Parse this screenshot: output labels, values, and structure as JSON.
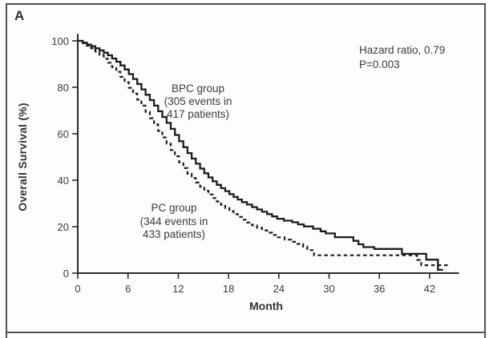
{
  "panel_label": "A",
  "annotations": {
    "hazard_line1": "Hazard ratio, 0.79",
    "hazard_line2": "P=0.003",
    "bpc_line1": "BPC group",
    "bpc_line2": "(305 events in",
    "bpc_line3": "417 patients)",
    "pc_line1": "PC group",
    "pc_line2": "(344 events in",
    "pc_line3": "433 patients)"
  },
  "chart_data": {
    "type": "line",
    "subtype": "kaplan-meier-step",
    "title": "",
    "xlabel": "Month",
    "ylabel": "Overall Survival (%)",
    "xlim": [
      0,
      44.5
    ],
    "ylim": [
      0,
      100
    ],
    "x_ticks": [
      0,
      6,
      12,
      18,
      24,
      30,
      36,
      42
    ],
    "y_ticks": [
      0,
      20,
      40,
      60,
      80,
      100
    ],
    "grid": false,
    "legend_position": "inline-annotations",
    "stats": {
      "hazard_ratio": 0.79,
      "p_value": 0.003
    },
    "series": [
      {
        "name": "BPC group",
        "style": "solid",
        "events": 305,
        "patients": 417,
        "points": [
          [
            0,
            100
          ],
          [
            0.6,
            99.2
          ],
          [
            1.1,
            98.4
          ],
          [
            1.6,
            97.7
          ],
          [
            2.1,
            96.8
          ],
          [
            2.6,
            95.9
          ],
          [
            3.1,
            94.9
          ],
          [
            3.6,
            93.8
          ],
          [
            4.1,
            92.4
          ],
          [
            4.6,
            91.0
          ],
          [
            5.1,
            89.4
          ],
          [
            5.6,
            87.7
          ],
          [
            6.1,
            85.7
          ],
          [
            6.6,
            83.6
          ],
          [
            7.1,
            81.4
          ],
          [
            7.6,
            79.1
          ],
          [
            8.1,
            76.8
          ],
          [
            8.6,
            74.5
          ],
          [
            9.1,
            72.1
          ],
          [
            9.6,
            69.7
          ],
          [
            10.1,
            67.2
          ],
          [
            10.6,
            64.7
          ],
          [
            11.1,
            62.1
          ],
          [
            11.6,
            59.5
          ],
          [
            12.1,
            56.8
          ],
          [
            12.6,
            54.2
          ],
          [
            13.1,
            51.7
          ],
          [
            13.6,
            49.3
          ],
          [
            14.1,
            47.1
          ],
          [
            14.6,
            45.0
          ],
          [
            15.1,
            43.0
          ],
          [
            15.6,
            41.2
          ],
          [
            16.1,
            39.5
          ],
          [
            16.6,
            38.0
          ],
          [
            17.1,
            36.6
          ],
          [
            17.6,
            35.3
          ],
          [
            18.1,
            34.0
          ],
          [
            18.6,
            32.8
          ],
          [
            19.1,
            31.7
          ],
          [
            19.6,
            30.6
          ],
          [
            20.2,
            29.5
          ],
          [
            20.8,
            28.4
          ],
          [
            21.4,
            27.4
          ],
          [
            22.0,
            26.4
          ],
          [
            22.6,
            25.4
          ],
          [
            23.2,
            24.4
          ],
          [
            23.8,
            23.4
          ],
          [
            24.6,
            22.6
          ],
          [
            25.6,
            21.9
          ],
          [
            26.3,
            21.0
          ],
          [
            27.0,
            20.1
          ],
          [
            28.1,
            19.1
          ],
          [
            29.0,
            18.0
          ],
          [
            29.6,
            17.1
          ],
          [
            30.7,
            15.5
          ],
          [
            32.9,
            13.9
          ],
          [
            33.5,
            12.4
          ],
          [
            34.1,
            11.2
          ],
          [
            35.4,
            10.4
          ],
          [
            38.7,
            8.3
          ],
          [
            41.6,
            5.8
          ],
          [
            43.0,
            1.4
          ],
          [
            43.6,
            1.4
          ]
        ]
      },
      {
        "name": "PC group",
        "style": "dashed",
        "events": 344,
        "patients": 433,
        "points": [
          [
            0,
            100
          ],
          [
            0.6,
            99.0
          ],
          [
            1.1,
            97.9
          ],
          [
            1.6,
            96.8
          ],
          [
            2.1,
            95.4
          ],
          [
            2.6,
            93.9
          ],
          [
            3.1,
            92.3
          ],
          [
            3.6,
            90.6
          ],
          [
            4.1,
            88.7
          ],
          [
            4.6,
            86.7
          ],
          [
            5.1,
            84.5
          ],
          [
            5.6,
            82.2
          ],
          [
            6.1,
            79.8
          ],
          [
            6.6,
            77.3
          ],
          [
            7.1,
            74.7
          ],
          [
            7.6,
            72.1
          ],
          [
            8.1,
            69.4
          ],
          [
            8.6,
            66.7
          ],
          [
            9.1,
            64.0
          ],
          [
            9.6,
            61.2
          ],
          [
            10.1,
            58.4
          ],
          [
            10.6,
            55.7
          ],
          [
            11.1,
            53.0
          ],
          [
            11.6,
            50.3
          ],
          [
            12.1,
            47.7
          ],
          [
            12.6,
            45.2
          ],
          [
            13.1,
            42.8
          ],
          [
            13.6,
            40.9
          ],
          [
            14.1,
            39.0
          ],
          [
            14.6,
            37.2
          ],
          [
            15.1,
            35.5
          ],
          [
            15.6,
            33.9
          ],
          [
            16.1,
            32.3
          ],
          [
            16.6,
            30.8
          ],
          [
            17.1,
            29.4
          ],
          [
            17.6,
            28.0
          ],
          [
            18.1,
            26.7
          ],
          [
            18.6,
            25.4
          ],
          [
            19.1,
            24.2
          ],
          [
            19.6,
            23.0
          ],
          [
            20.2,
            21.8
          ],
          [
            20.8,
            20.6
          ],
          [
            21.4,
            19.5
          ],
          [
            22.0,
            18.4
          ],
          [
            22.6,
            17.4
          ],
          [
            23.2,
            16.4
          ],
          [
            23.9,
            15.4
          ],
          [
            24.7,
            14.4
          ],
          [
            25.5,
            13.5
          ],
          [
            26.2,
            12.6
          ],
          [
            26.9,
            11.4
          ],
          [
            27.4,
            9.9
          ],
          [
            28.2,
            7.7
          ],
          [
            40.0,
            7.7
          ],
          [
            40.5,
            5.7
          ],
          [
            41.0,
            3.4
          ],
          [
            44.3,
            3.4
          ]
        ]
      }
    ],
    "colors": {
      "curve": "#1c1c1c",
      "text": "#3a3b3e",
      "axis": "#2b2c2e",
      "border": "#515256"
    }
  }
}
